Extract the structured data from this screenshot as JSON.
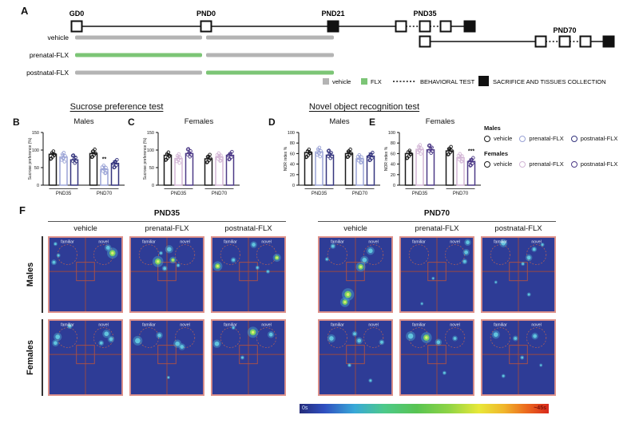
{
  "panelA": {
    "label": "A",
    "milestones": [
      "GD0",
      "PND0",
      "PND21",
      "PND35",
      "PND70"
    ],
    "rows": [
      {
        "label": "vehicle",
        "seg1": "vehicle",
        "seg2": "vehicle"
      },
      {
        "label": "prenatal-FLX",
        "seg1": "flx",
        "seg2": "vehicle"
      },
      {
        "label": "postnatal-FLX",
        "seg1": "vehicle",
        "seg2": "flx"
      }
    ],
    "legend": {
      "vehicle": "vehicle",
      "flx": "FLX",
      "behavioral": "BEHAVIORAL TEST",
      "sacrifice": "SACRIFICE AND TISSUES COLLECTION"
    },
    "colors": {
      "vehicle": "#b4b4b4",
      "flx": "#7cc576"
    }
  },
  "sections": {
    "sucrose_title": "Sucrose preference test",
    "nor_title": "Novel object recognition test"
  },
  "chart_data": [
    {
      "panel_label": "B",
      "title": "Males",
      "type": "bar",
      "ylabel": "Sucrose preference (%)",
      "ylim": [
        0,
        150
      ],
      "yticks": [
        0,
        50,
        100,
        150
      ],
      "categories": [
        "PND35",
        "PND70"
      ],
      "series": [
        {
          "name": "vehicle",
          "color": "#1a1a1a",
          "values": [
            88,
            90
          ],
          "errors": [
            3,
            3
          ]
        },
        {
          "name": "prenatal-FLX",
          "color": "#9aa3d6",
          "values": [
            80,
            45
          ],
          "errors": [
            7,
            9
          ]
        },
        {
          "name": "postnatal-FLX",
          "color": "#35357e",
          "values": [
            72,
            62
          ],
          "errors": [
            9,
            7
          ]
        }
      ],
      "significance": [
        {
          "category": "PND70",
          "series": "prenatal-FLX",
          "label": "**"
        }
      ]
    },
    {
      "panel_label": "C",
      "title": "Females",
      "type": "bar",
      "ylabel": "Sucrose preference (%)",
      "ylim": [
        0,
        150
      ],
      "yticks": [
        0,
        50,
        100,
        150
      ],
      "categories": [
        "PND35",
        "PND70"
      ],
      "series": [
        {
          "name": "vehicle",
          "color": "#1a1a1a",
          "values": [
            85,
            75
          ],
          "errors": [
            4,
            9
          ]
        },
        {
          "name": "prenatal-FLX",
          "color": "#d3b6d6",
          "values": [
            76,
            80
          ],
          "errors": [
            6,
            6
          ]
        },
        {
          "name": "postnatal-FLX",
          "color": "#4d3a87",
          "values": [
            90,
            85
          ],
          "errors": [
            4,
            5
          ]
        }
      ],
      "significance": []
    },
    {
      "panel_label": "D",
      "title": "Males",
      "type": "bar",
      "ylabel": "NOR index %",
      "ylim": [
        0,
        100
      ],
      "yticks": [
        0,
        20,
        40,
        60,
        80,
        100
      ],
      "categories": [
        "PND35",
        "PND70"
      ],
      "series": [
        {
          "name": "vehicle",
          "color": "#1a1a1a",
          "values": [
            62,
            60
          ],
          "errors": [
            4,
            4
          ]
        },
        {
          "name": "prenatal-FLX",
          "color": "#9aa3d6",
          "values": [
            63,
            50
          ],
          "errors": [
            5,
            6
          ]
        },
        {
          "name": "postnatal-FLX",
          "color": "#35357e",
          "values": [
            57,
            55
          ],
          "errors": [
            4,
            6
          ]
        }
      ],
      "significance": []
    },
    {
      "panel_label": "E",
      "title": "Females",
      "type": "bar",
      "ylabel": "NOR index %",
      "ylim": [
        0,
        100
      ],
      "yticks": [
        0,
        20,
        40,
        60,
        80,
        100
      ],
      "categories": [
        "PND35",
        "PND70"
      ],
      "series": [
        {
          "name": "vehicle",
          "color": "#1a1a1a",
          "values": [
            60,
            65
          ],
          "errors": [
            5,
            4
          ]
        },
        {
          "name": "prenatal-FLX",
          "color": "#d3b6d6",
          "values": [
            68,
            52
          ],
          "errors": [
            5,
            5
          ]
        },
        {
          "name": "postnatal-FLX",
          "color": "#4d3a87",
          "values": [
            67,
            45
          ],
          "errors": [
            5,
            5
          ]
        }
      ],
      "significance": [
        {
          "category": "PND70",
          "series": "postnatal-FLX",
          "label": "***"
        }
      ]
    }
  ],
  "legend_right": {
    "males_title": "Males",
    "females_title": "Females",
    "males": [
      {
        "label": "vehicle",
        "color": "#1a1a1a"
      },
      {
        "label": "prenatal-FLX",
        "color": "#9aa3d6"
      },
      {
        "label": "postnatal-FLX",
        "color": "#35357e"
      }
    ],
    "females": [
      {
        "label": "vehicle",
        "color": "#1a1a1a"
      },
      {
        "label": "prenatal-FLX",
        "color": "#d3b6d6"
      },
      {
        "label": "postnatal-FLX",
        "color": "#4d3a87"
      }
    ]
  },
  "panelF": {
    "label": "F",
    "groups": [
      {
        "title": "PND35"
      },
      {
        "title": "PND70"
      }
    ],
    "columns": [
      "vehicle",
      "prenatal-FLX",
      "postnatal-FLX"
    ],
    "row_labels": [
      "Males",
      "Females"
    ],
    "zone_labels": {
      "familiar": "familiar",
      "novel": "novel"
    },
    "colorbar": {
      "min_label": "0s",
      "max_label": "~45s"
    }
  }
}
